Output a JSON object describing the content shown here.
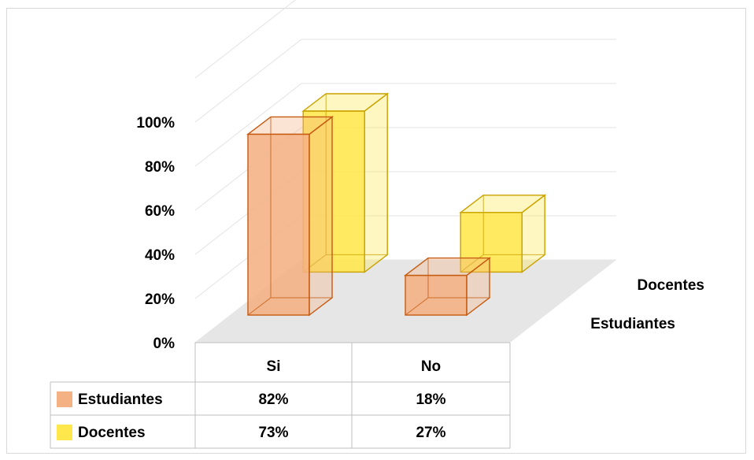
{
  "chart_data": {
    "type": "bar",
    "categories": [
      "Si",
      "No"
    ],
    "series": [
      {
        "name": "Estudiantes",
        "values": [
          82,
          18
        ],
        "labels": [
          "82%",
          "18%"
        ],
        "color": "#f4b183",
        "edge": "#c55a11"
      },
      {
        "name": "Docentes",
        "values": [
          73,
          27
        ],
        "labels": [
          "73%",
          "27%"
        ],
        "color": "#ffe74c",
        "edge": "#c9a100"
      }
    ],
    "y_ticks": [
      "0%",
      "20%",
      "40%",
      "60%",
      "80%",
      "100%"
    ],
    "ylim": [
      0,
      100
    ],
    "depth_labels": [
      "Docentes",
      "Estudiantes"
    ],
    "grid": true,
    "legend": "data-table",
    "title": "",
    "xlabel": "",
    "ylabel": ""
  }
}
